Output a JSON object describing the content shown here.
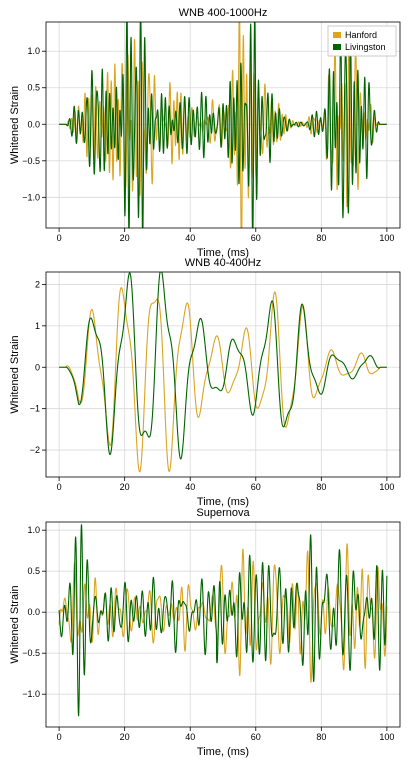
{
  "chart_data": [
    {
      "type": "line",
      "title": "WNB 400-1000Hz",
      "xlabel": "Time, (ms)",
      "ylabel": "Whitened Strain",
      "xlim": [
        -4,
        104
      ],
      "ylim": [
        -1.42,
        1.4
      ],
      "xticks": [
        0,
        20,
        40,
        60,
        80,
        100
      ],
      "yticks": [
        -1.0,
        -0.5,
        0.0,
        0.5,
        1.0
      ],
      "ytick_labels": [
        "−1.0",
        "−0.5",
        "0.0",
        "0.5",
        "1.0"
      ],
      "grid": true,
      "legend": "top-right",
      "series": [
        {
          "name": "Hanford",
          "color": "#DAA520"
        },
        {
          "name": "Livingston",
          "color": "#006400"
        }
      ],
      "approx_extrema": {
        "min": -1.3,
        "max": 1.25
      }
    },
    {
      "type": "line",
      "title": "WNB 40-400Hz",
      "xlabel": "Time, (ms)",
      "ylabel": "Whitened Strain",
      "xlim": [
        -4,
        104
      ],
      "ylim": [
        -2.65,
        2.3
      ],
      "xticks": [
        0,
        20,
        40,
        60,
        80,
        100
      ],
      "yticks": [
        -2,
        -1,
        0,
        1,
        2
      ],
      "ytick_labels": [
        "−2",
        "−1",
        "0",
        "1",
        "2"
      ],
      "grid": true,
      "series": [
        {
          "name": "Hanford",
          "color": "#DAA520"
        },
        {
          "name": "Livingston",
          "color": "#006400"
        }
      ],
      "approx_extrema": {
        "min": -2.45,
        "max": 2.1
      }
    },
    {
      "type": "line",
      "title": "Supernova",
      "xlabel": "Time, (ms)",
      "ylabel": "Whitened Strain",
      "xlim": [
        -4,
        104
      ],
      "ylim": [
        -1.4,
        1.1
      ],
      "xticks": [
        0,
        20,
        40,
        60,
        80,
        100
      ],
      "yticks": [
        -1.0,
        -0.5,
        0.0,
        0.5,
        1.0
      ],
      "ytick_labels": [
        "−1.0",
        "−0.5",
        "0.0",
        "0.5",
        "1.0"
      ],
      "grid": true,
      "series": [
        {
          "name": "Hanford",
          "color": "#DAA520"
        },
        {
          "name": "Livingston",
          "color": "#006400"
        }
      ],
      "approx_extrema": {
        "min": -1.3,
        "max": 1.0
      }
    }
  ]
}
